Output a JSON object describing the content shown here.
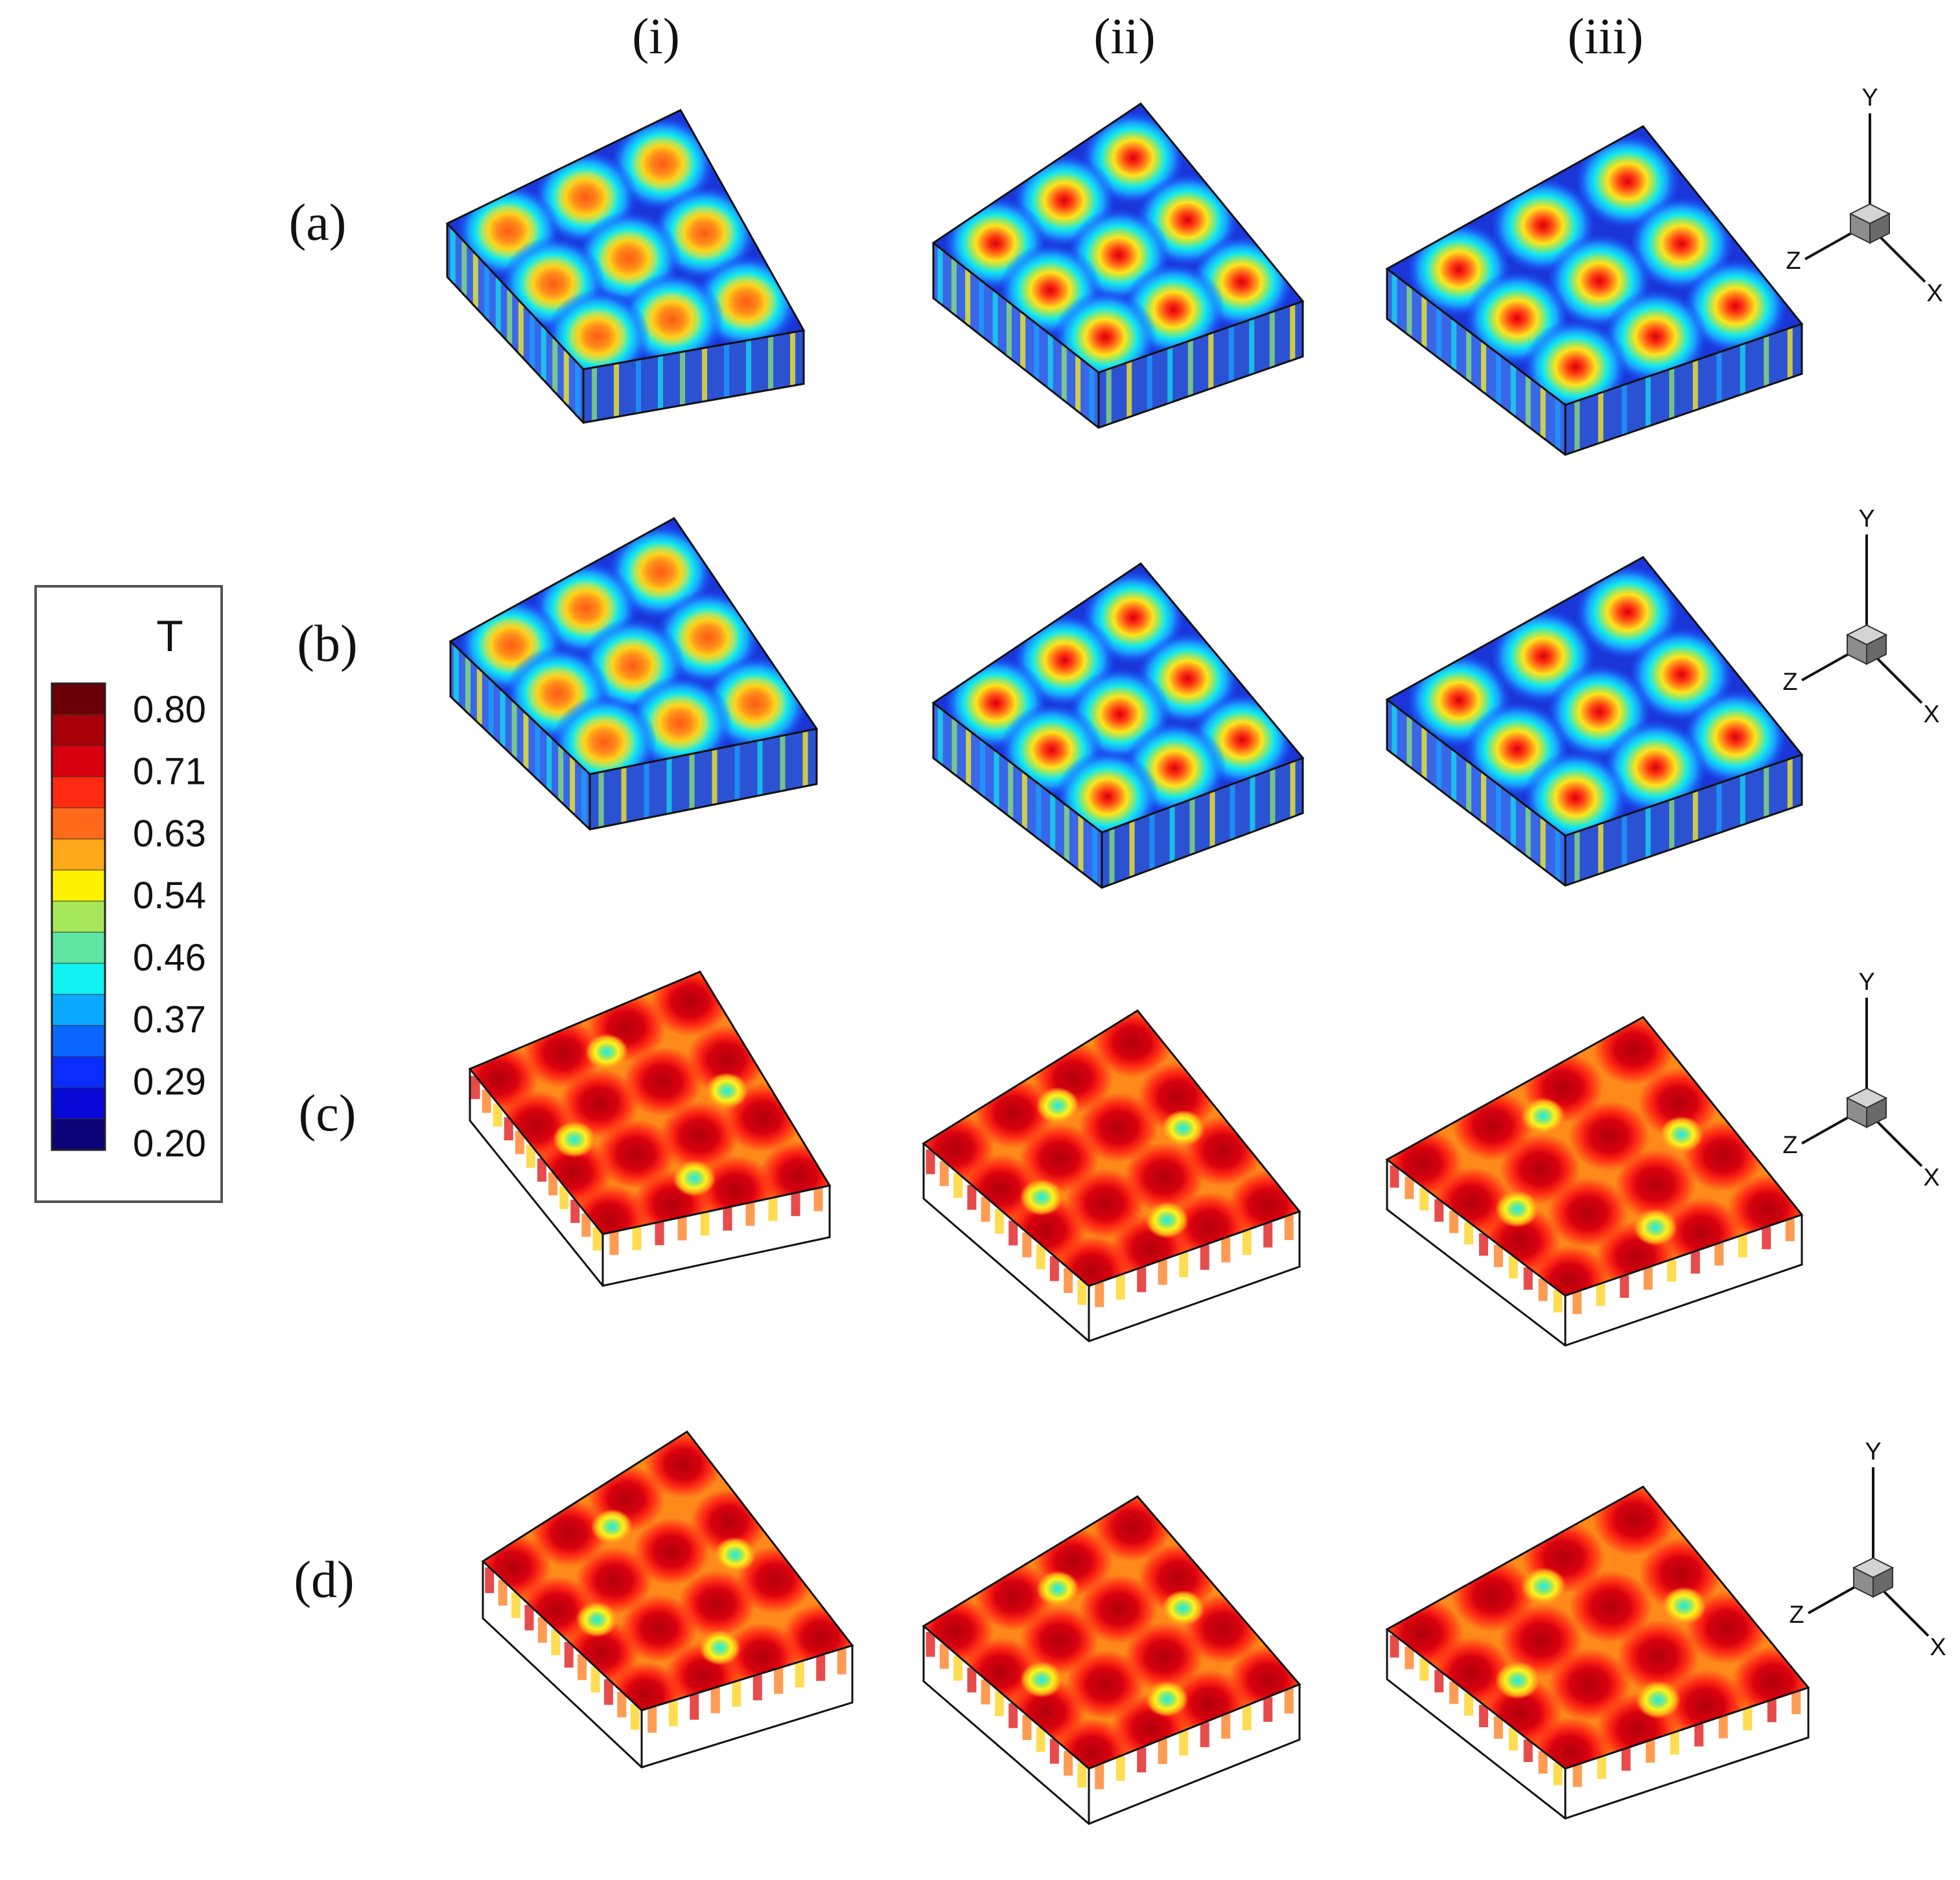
{
  "figure": {
    "column_labels": [
      "(i)",
      "(ii)",
      "(iii)"
    ],
    "row_labels": [
      "(a)",
      "(b)",
      "(c)",
      "(d)"
    ]
  },
  "legend": {
    "title": "T",
    "tick_labels": [
      "0.80",
      "0.71",
      "0.63",
      "0.54",
      "0.46",
      "0.37",
      "0.29",
      "0.20"
    ],
    "colors": [
      "#6a0008",
      "#a8000a",
      "#d80010",
      "#ff2a10",
      "#ff6a1a",
      "#ffa81a",
      "#fff200",
      "#a6e85a",
      "#5ee6a2",
      "#12f2f2",
      "#0aa8ff",
      "#0a66ff",
      "#0a2cff",
      "#0a08d6",
      "#0a0478"
    ]
  },
  "axes_triad": {
    "x": "X",
    "y": "Y",
    "z": "Z"
  },
  "colors": {
    "cold_background": "#1a36d8",
    "hot_background": "#e21616",
    "box_edge": "#111111"
  }
}
